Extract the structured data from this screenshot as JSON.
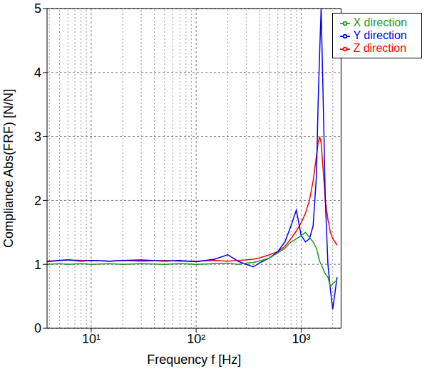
{
  "chart_data": {
    "type": "line",
    "x_label": "Frequency f [Hz]",
    "y_label": "Compliance Abs(FRF) [N/N]",
    "log": "x",
    "grid": true,
    "legend": "upper right",
    "xlim": [
      3.8,
      2400
    ],
    "xticks": [
      {
        "value": 10,
        "label": "10¹"
      },
      {
        "value": 100,
        "label": "10²"
      },
      {
        "value": 1000,
        "label": "10³"
      }
    ],
    "ylim": [
      0,
      5
    ],
    "yticks": [
      0,
      1,
      2,
      3,
      4,
      5
    ],
    "x": [
      3.8,
      5,
      6,
      8,
      10,
      15,
      20,
      30,
      50,
      70,
      100,
      150,
      200,
      250,
      300,
      350,
      400,
      500,
      600,
      700,
      800,
      900,
      1000,
      1100,
      1200,
      1300,
      1400,
      1450,
      1500,
      1550,
      1600,
      1650,
      1700,
      1800,
      1900,
      2000,
      2200
    ],
    "series": [
      {
        "name": "Z direction",
        "color": "#ff0000",
        "values": [
          1.05,
          1.06,
          1.07,
          1.06,
          1.06,
          1.05,
          1.06,
          1.05,
          1.06,
          1.05,
          1.05,
          1.06,
          1.05,
          1.06,
          1.07,
          1.08,
          1.1,
          1.15,
          1.2,
          1.28,
          1.4,
          1.52,
          1.65,
          1.8,
          2.0,
          2.3,
          2.7,
          2.9,
          3.0,
          2.9,
          2.6,
          2.3,
          2.0,
          1.7,
          1.5,
          1.4,
          1.3
        ]
      },
      {
        "name": "Y direction",
        "color": "#0000ff",
        "values": [
          1.04,
          1.06,
          1.07,
          1.05,
          1.06,
          1.05,
          1.06,
          1.07,
          1.05,
          1.06,
          1.04,
          1.08,
          1.15,
          1.05,
          1.0,
          0.96,
          1.02,
          1.1,
          1.2,
          1.35,
          1.6,
          1.85,
          1.45,
          1.35,
          1.4,
          1.6,
          2.4,
          3.5,
          4.3,
          5.0,
          4.0,
          3.0,
          2.0,
          1.0,
          0.6,
          0.3,
          0.8
        ]
      },
      {
        "name": "X direction",
        "color": "#1f9a1f",
        "values": [
          1.0,
          1.01,
          1.0,
          1.01,
          1.0,
          1.01,
          1.0,
          1.01,
          1.0,
          1.01,
          1.0,
          1.01,
          1.02,
          1.0,
          1.02,
          1.03,
          1.05,
          1.1,
          1.18,
          1.25,
          1.35,
          1.4,
          1.45,
          1.5,
          1.42,
          1.35,
          1.25,
          1.15,
          1.05,
          1.0,
          0.95,
          0.9,
          0.85,
          0.8,
          0.65,
          0.7,
          0.75
        ]
      }
    ]
  }
}
